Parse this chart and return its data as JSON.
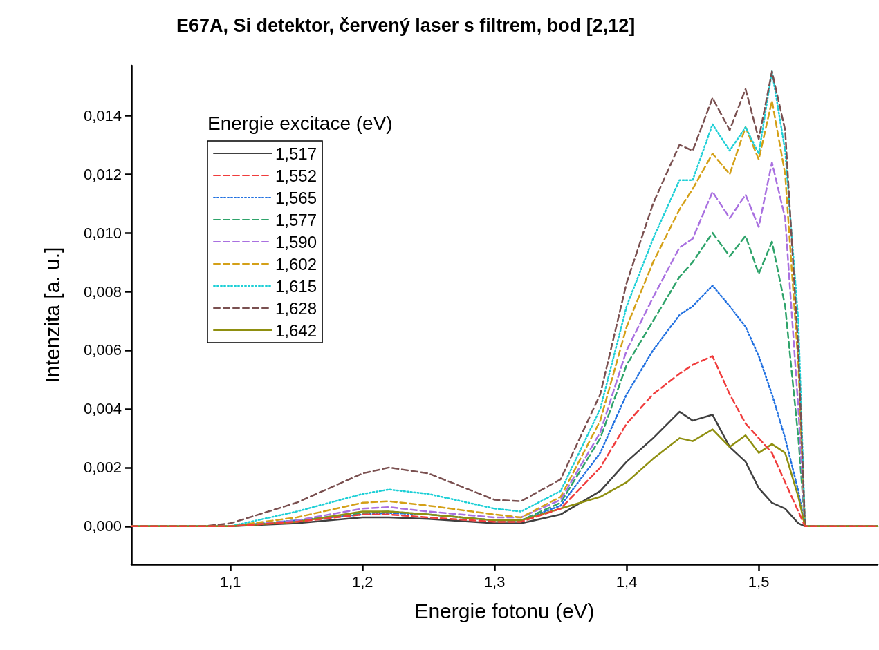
{
  "chart_data": {
    "type": "line",
    "title": "E67A, Si detektor, červený laser s filtrem, bod [2,12]",
    "xlabel": "Energie fotonu (eV)",
    "ylabel": "Intenzita [a. u.]",
    "legend_title": "Energie excitace (eV)",
    "legend": "top left",
    "grid": false,
    "marker": "none",
    "x": [
      1.025,
      1.08,
      1.1,
      1.15,
      1.2,
      1.22,
      1.25,
      1.3,
      1.32,
      1.35,
      1.38,
      1.4,
      1.42,
      1.44,
      1.45,
      1.465,
      1.478,
      1.49,
      1.5,
      1.51,
      1.52,
      1.53,
      1.535,
      1.59
    ],
    "xlim": [
      1.025,
      1.59
    ],
    "xticks": [
      {
        "value": 1.1,
        "label": "1,1"
      },
      {
        "value": 1.2,
        "label": "1,2"
      },
      {
        "value": 1.3,
        "label": "1,3"
      },
      {
        "value": 1.4,
        "label": "1,4"
      },
      {
        "value": 1.5,
        "label": "1,5"
      }
    ],
    "ylim": [
      -0.0013,
      0.0157
    ],
    "yticks": [
      {
        "value": 0,
        "label": "0,000"
      },
      {
        "value": 0.002,
        "label": "0,002"
      },
      {
        "value": 0.004,
        "label": "0,004"
      },
      {
        "value": 0.006,
        "label": "0,006"
      },
      {
        "value": 0.008,
        "label": "0,008"
      },
      {
        "value": 0.01,
        "label": "0,010"
      },
      {
        "value": 0.012,
        "label": "0,012"
      },
      {
        "value": 0.014,
        "label": "0,014"
      }
    ],
    "series": [
      {
        "name": "1,517",
        "color": "#404040",
        "line_style": "solid",
        "values": [
          0,
          0,
          0,
          0.0001,
          0.0003,
          0.0003,
          0.00025,
          0.0001,
          0.0001,
          0.0004,
          0.0012,
          0.0022,
          0.003,
          0.0039,
          0.0036,
          0.0038,
          0.0027,
          0.0022,
          0.0013,
          0.0008,
          0.0006,
          0.0001,
          0,
          0
        ]
      },
      {
        "name": "1,552",
        "color": "#f03c3c",
        "line_style": "dashed",
        "values": [
          0,
          0,
          0,
          0.00015,
          0.0004,
          0.0004,
          0.0003,
          0.00015,
          0.00015,
          0.0006,
          0.002,
          0.0035,
          0.0045,
          0.0052,
          0.0055,
          0.0058,
          0.0045,
          0.0035,
          0.003,
          0.0025,
          0.0015,
          0.0005,
          0,
          0
        ]
      },
      {
        "name": "1,565",
        "color": "#1f6fe0",
        "line_style": "dotted",
        "values": [
          0,
          0,
          0,
          0.0002,
          0.0004,
          0.00045,
          0.0004,
          0.0002,
          0.0002,
          0.0007,
          0.0025,
          0.0045,
          0.006,
          0.0072,
          0.0075,
          0.0082,
          0.0075,
          0.0068,
          0.0058,
          0.0045,
          0.003,
          0.0012,
          0,
          0
        ]
      },
      {
        "name": "1,577",
        "color": "#2ea36a",
        "line_style": "dashed",
        "values": [
          0,
          0,
          0,
          0.0002,
          0.00045,
          0.0005,
          0.0004,
          0.0002,
          0.0002,
          0.0008,
          0.003,
          0.0055,
          0.007,
          0.0085,
          0.009,
          0.01,
          0.0092,
          0.0099,
          0.0086,
          0.0097,
          0.0075,
          0.003,
          0,
          0
        ]
      },
      {
        "name": "1,590",
        "color": "#a970e0",
        "line_style": "dashed",
        "values": [
          0,
          0,
          0,
          0.0002,
          0.0006,
          0.00065,
          0.0005,
          0.0003,
          0.0003,
          0.0009,
          0.0032,
          0.006,
          0.0078,
          0.0095,
          0.0098,
          0.0114,
          0.0105,
          0.0113,
          0.0102,
          0.0124,
          0.0105,
          0.004,
          0,
          0
        ]
      },
      {
        "name": "1,602",
        "color": "#d4a017",
        "line_style": "dashed",
        "values": [
          0,
          0,
          0,
          0.0003,
          0.0008,
          0.00085,
          0.0007,
          0.0004,
          0.0003,
          0.001,
          0.0036,
          0.0068,
          0.009,
          0.0108,
          0.0115,
          0.0127,
          0.012,
          0.0136,
          0.0125,
          0.0145,
          0.012,
          0.0055,
          0,
          0
        ]
      },
      {
        "name": "1,615",
        "color": "#1ccfd6",
        "line_style": "dotted",
        "values": [
          0,
          0,
          0,
          0.0005,
          0.0011,
          0.00125,
          0.0011,
          0.0006,
          0.0005,
          0.0012,
          0.004,
          0.0075,
          0.0098,
          0.0118,
          0.0118,
          0.0137,
          0.0128,
          0.0136,
          0.0127,
          0.0155,
          0.0128,
          0.007,
          0,
          0
        ]
      },
      {
        "name": "1,628",
        "color": "#7a5050",
        "line_style": "dashed",
        "values": [
          0,
          0,
          0.0001,
          0.0008,
          0.0018,
          0.002,
          0.0018,
          0.0009,
          0.00085,
          0.0016,
          0.0045,
          0.0083,
          0.011,
          0.013,
          0.0128,
          0.0146,
          0.0135,
          0.0149,
          0.0132,
          0.0155,
          0.0135,
          0.006,
          0,
          0
        ]
      },
      {
        "name": "1,642",
        "color": "#8f8f10",
        "line_style": "solid",
        "values": [
          0,
          0,
          0,
          0.00015,
          0.0005,
          0.0005,
          0.0004,
          0.0002,
          0.0002,
          0.0006,
          0.001,
          0.0015,
          0.0023,
          0.003,
          0.0029,
          0.0033,
          0.0027,
          0.0031,
          0.0025,
          0.0028,
          0.0025,
          0.001,
          0,
          0
        ]
      }
    ]
  }
}
